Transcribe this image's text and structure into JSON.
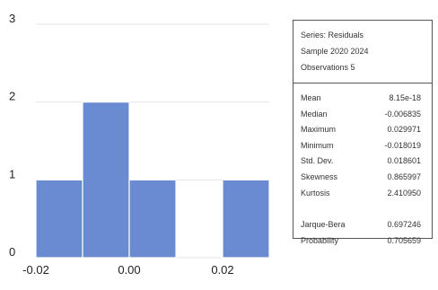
{
  "chart_data": {
    "type": "histogram",
    "bins": [
      {
        "x0": -0.02,
        "x1": -0.01,
        "count": 1
      },
      {
        "x0": -0.01,
        "x1": 0.0,
        "count": 2
      },
      {
        "x0": 0.0,
        "x1": 0.01,
        "count": 1
      },
      {
        "x0": 0.01,
        "x1": 0.02,
        "count": 0
      },
      {
        "x0": 0.02,
        "x1": 0.03,
        "count": 1
      }
    ],
    "xlim": [
      -0.02,
      0.03
    ],
    "ylim": [
      0,
      3
    ],
    "x_ticks": [
      {
        "value": -0.02,
        "label": "-0.02"
      },
      {
        "value": 0.0,
        "label": "0.00"
      },
      {
        "value": 0.02,
        "label": "0.02"
      }
    ],
    "y_ticks": [
      {
        "value": 0,
        "label": "0"
      },
      {
        "value": 1,
        "label": "1"
      },
      {
        "value": 2,
        "label": "2"
      },
      {
        "value": 3,
        "label": "3"
      }
    ],
    "bar_color": "#6a8bd1",
    "grid": true,
    "grid_color": "#e6e6e6"
  },
  "stats_panel": {
    "series": "Series: Residuals",
    "sample": "Sample 2020 2024",
    "observations": "Observations 5",
    "rows": [
      {
        "label": "Mean",
        "value": "8.15e-18"
      },
      {
        "label": "Median",
        "value": "-0.006835"
      },
      {
        "label": "Maximum",
        "value": "0.029971"
      },
      {
        "label": "Minimum",
        "value": "-0.018019"
      },
      {
        "label": "Std. Dev.",
        "value": "0.018601"
      },
      {
        "label": "Skewness",
        "value": "0.865997"
      },
      {
        "label": "Kurtosis",
        "value": "2.410950"
      }
    ],
    "test_rows": [
      {
        "label": "Jarque-Bera",
        "value": "0.697246"
      },
      {
        "label": "Probability",
        "value": "0.705659"
      }
    ]
  }
}
